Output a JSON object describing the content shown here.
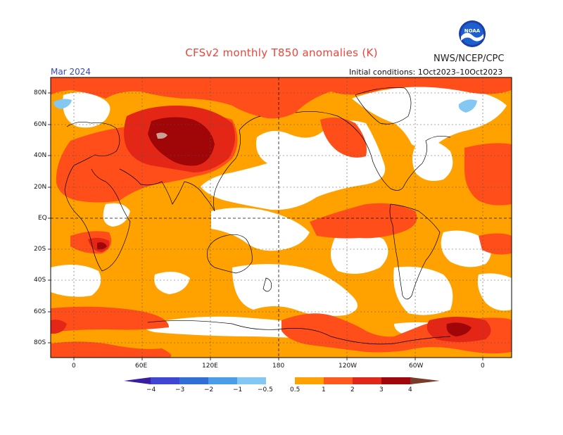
{
  "title": "CFSv2 monthly T850 anomalies (K)",
  "organization": "NWS/NCEP/CPC",
  "logo_text": "NOAA",
  "period": "Mar 2024",
  "initial_conditions": "Initial conditions: 1Oct2023–10Oct2023",
  "lat_labels": [
    "80N",
    "60N",
    "40N",
    "20N",
    "EQ",
    "20S",
    "40S",
    "60S",
    "80S"
  ],
  "lon_labels": [
    "0",
    "60E",
    "120E",
    "180",
    "120W",
    "60W",
    "0"
  ],
  "colorbar": {
    "labels": [
      "−4",
      "−3",
      "−2",
      "−1",
      "−0.5",
      "0.5",
      "1",
      "2",
      "3",
      "4"
    ],
    "colors": [
      "#3a1ea0",
      "#3e46d2",
      "#2f6fd6",
      "#4a9ee8",
      "#82c8f2",
      "#ffffff",
      "#ffa200",
      "#ff5a1e",
      "#e0281a",
      "#a0060a",
      "#c8a096",
      "#7a3c28"
    ]
  },
  "palette": {
    "white": "#ffffff",
    "light_orange": "#ffa200",
    "orange_red": "#ff4e1a",
    "red": "#e42616",
    "dark_red": "#a00508",
    "light_blue": "#82c8f2",
    "tan": "#c8a096"
  }
}
